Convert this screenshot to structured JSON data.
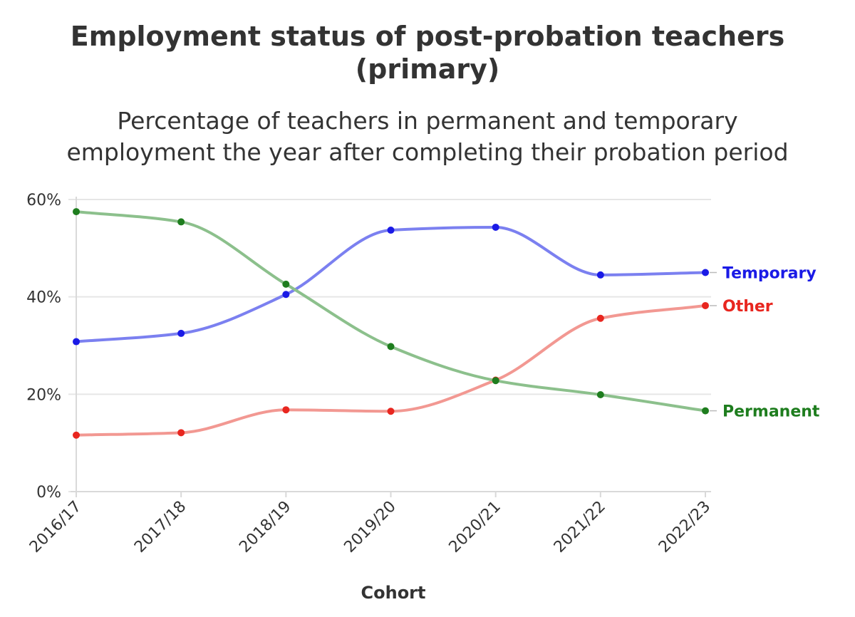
{
  "chart_data": {
    "type": "line",
    "title_lines": [
      "Employment status of post-probation teachers",
      "(primary)"
    ],
    "subtitle_lines": [
      "Percentage of teachers in permanent and temporary",
      "employment the year after completing their probation period"
    ],
    "xlabel": "Cohort",
    "ylabel": "",
    "categories": [
      "2016/17",
      "2017/18",
      "2018/19",
      "2019/20",
      "2020/21",
      "2021/22",
      "2022/23"
    ],
    "ylim": [
      0,
      60
    ],
    "yticks": [
      0,
      20,
      40,
      60
    ],
    "ytick_labels": [
      "0%",
      "20%",
      "40%",
      "60%"
    ],
    "grid": true,
    "series": [
      {
        "name": "Temporary",
        "color": "#1a1ae6",
        "line_color": "#7b80f0",
        "values": [
          30.8,
          32.5,
          40.5,
          53.7,
          54.3,
          44.5,
          45.0
        ]
      },
      {
        "name": "Other",
        "color": "#e8261f",
        "line_color": "#f29892",
        "values": [
          11.6,
          12.1,
          16.8,
          16.5,
          22.9,
          35.6,
          38.2
        ]
      },
      {
        "name": "Permanent",
        "color": "#1e7d1e",
        "line_color": "#8cc08c",
        "values": [
          57.5,
          55.4,
          42.6,
          29.8,
          22.8,
          19.9,
          16.6
        ]
      }
    ]
  }
}
